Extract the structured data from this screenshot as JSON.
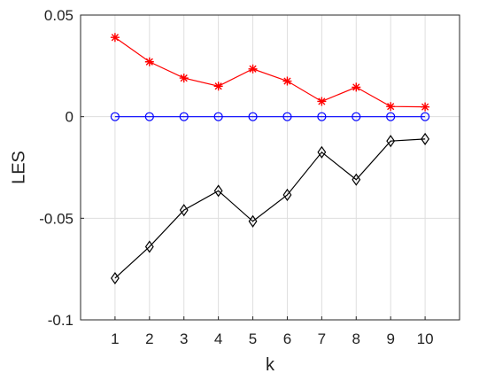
{
  "chart_data": {
    "type": "line",
    "title": "",
    "xlabel": "k",
    "ylabel": "LES",
    "x": [
      1,
      2,
      3,
      4,
      5,
      6,
      7,
      8,
      9,
      10
    ],
    "xlim": [
      0,
      11
    ],
    "ylim": [
      -0.1,
      0.05
    ],
    "xticks": [
      "1",
      "2",
      "3",
      "4",
      "5",
      "6",
      "7",
      "8",
      "9",
      "10"
    ],
    "yticks": [
      {
        "value": -0.1,
        "label": "-0.1"
      },
      {
        "value": -0.05,
        "label": "-0.05"
      },
      {
        "value": 0,
        "label": "0"
      },
      {
        "value": 0.05,
        "label": "0.05"
      }
    ],
    "grid": true,
    "legend": false,
    "series": [
      {
        "color": "#ff0000",
        "marker": "asterisk",
        "values": [
          0.039,
          0.027,
          0.019,
          0.015,
          0.0235,
          0.0175,
          0.0075,
          0.0145,
          0.005,
          0.0048
        ]
      },
      {
        "color": "#0000ff",
        "marker": "circle",
        "values": [
          0,
          0,
          0,
          0,
          0,
          0,
          0,
          0,
          0,
          0
        ]
      },
      {
        "color": "#000000",
        "marker": "diamond",
        "values": [
          -0.0795,
          -0.064,
          -0.046,
          -0.0365,
          -0.0515,
          -0.0385,
          -0.0175,
          -0.031,
          -0.012,
          -0.011
        ]
      }
    ]
  }
}
